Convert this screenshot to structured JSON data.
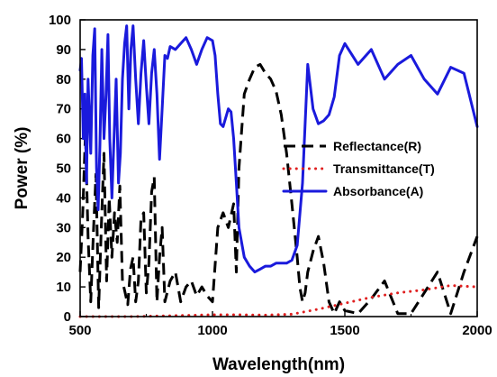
{
  "chart_data": {
    "type": "line",
    "title": "",
    "xlabel": "Wavelength(nm)",
    "ylabel": "Power (%)",
    "xlim": [
      500,
      2000
    ],
    "ylim": [
      0,
      100
    ],
    "xticks": [
      500,
      1000,
      1500,
      2000
    ],
    "yticks": [
      0,
      10,
      20,
      30,
      40,
      50,
      60,
      70,
      80,
      90,
      100
    ],
    "grid": false,
    "legend": "center-right",
    "series": [
      {
        "name": "Reflectance(R)",
        "color": "#000000",
        "style": "dashed",
        "x": [
          500,
          510,
          520,
          530,
          540,
          550,
          560,
          570,
          580,
          590,
          600,
          610,
          620,
          630,
          640,
          650,
          660,
          670,
          680,
          690,
          700,
          710,
          720,
          730,
          740,
          750,
          760,
          770,
          780,
          790,
          800,
          810,
          820,
          840,
          860,
          880,
          900,
          920,
          940,
          960,
          980,
          1000,
          1020,
          1040,
          1060,
          1080,
          1090,
          1100,
          1120,
          1140,
          1160,
          1180,
          1200,
          1220,
          1240,
          1260,
          1280,
          1300,
          1320,
          1330,
          1340,
          1350,
          1360,
          1380,
          1400,
          1420,
          1440,
          1460,
          1480,
          1500,
          1550,
          1600,
          1650,
          1700,
          1750,
          1800,
          1850,
          1900,
          1950,
          2000
        ],
        "y": [
          15,
          35,
          62,
          27,
          5,
          28,
          48,
          3,
          30,
          55,
          12,
          40,
          20,
          35,
          25,
          44,
          12,
          8,
          4,
          16,
          20,
          5,
          12,
          33,
          35,
          8,
          18,
          42,
          47,
          5,
          20,
          30,
          5,
          12,
          15,
          5,
          10,
          12,
          7,
          10,
          7,
          5,
          30,
          35,
          30,
          38,
          15,
          50,
          75,
          80,
          84,
          85,
          82,
          80,
          76,
          68,
          55,
          38,
          20,
          10,
          5,
          8,
          15,
          22,
          27,
          18,
          5,
          1,
          5,
          2,
          1,
          6,
          12,
          1,
          1,
          8,
          15,
          1,
          15,
          27
        ]
      },
      {
        "name": "Transmittance(T)",
        "color": "#e02020",
        "style": "dotted",
        "x": [
          500,
          700,
          800,
          900,
          1000,
          1100,
          1200,
          1300,
          1400,
          1500,
          1600,
          1700,
          1800,
          1900,
          2000
        ],
        "y": [
          0,
          0,
          0.2,
          0.4,
          0.6,
          0.6,
          0.5,
          0.8,
          2.5,
          4.5,
          6.5,
          8,
          9,
          10.5,
          10
        ]
      },
      {
        "name": "Absorbance(A)",
        "color": "#1a1adc",
        "style": "solid",
        "x": [
          500,
          505,
          512,
          518,
          524,
          530,
          540,
          548,
          555,
          562,
          568,
          575,
          582,
          590,
          598,
          605,
          612,
          620,
          628,
          636,
          645,
          652,
          660,
          668,
          676,
          684,
          692,
          700,
          710,
          720,
          730,
          740,
          750,
          760,
          770,
          780,
          790,
          800,
          810,
          820,
          830,
          840,
          860,
          880,
          900,
          920,
          940,
          960,
          980,
          1000,
          1010,
          1020,
          1030,
          1040,
          1050,
          1060,
          1070,
          1080,
          1090,
          1100,
          1120,
          1140,
          1160,
          1180,
          1200,
          1220,
          1240,
          1260,
          1280,
          1300,
          1320,
          1340,
          1360,
          1380,
          1400,
          1420,
          1440,
          1460,
          1480,
          1500,
          1550,
          1600,
          1650,
          1700,
          1750,
          1800,
          1850,
          1900,
          1950,
          2000
        ],
        "y": [
          83,
          87,
          60,
          75,
          45,
          80,
          55,
          88,
          97,
          50,
          36,
          58,
          90,
          60,
          75,
          95,
          60,
          40,
          60,
          80,
          45,
          55,
          80,
          92,
          98,
          70,
          90,
          98,
          80,
          65,
          82,
          93,
          78,
          65,
          82,
          90,
          75,
          53,
          70,
          88,
          87,
          91,
          90,
          92,
          94,
          90,
          85,
          90,
          94,
          93,
          88,
          75,
          65,
          64,
          67,
          70,
          69,
          60,
          45,
          30,
          20,
          17,
          15,
          16,
          17,
          17,
          18,
          18,
          18,
          19,
          24,
          45,
          85,
          70,
          65,
          66,
          68,
          74,
          88,
          92,
          85,
          90,
          80,
          85,
          88,
          80,
          75,
          84,
          82,
          64
        ]
      }
    ]
  }
}
